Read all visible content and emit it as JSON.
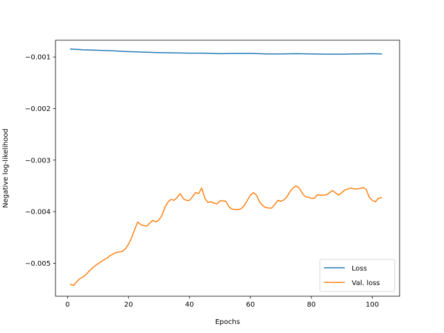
{
  "chart_data": {
    "type": "line",
    "title": "",
    "xlabel": "Epochs",
    "ylabel": "Negative log-likelihood",
    "xlim": [
      -3.95,
      108.95
    ],
    "ylim": [
      -0.00564,
      -0.000675
    ],
    "xticks": [
      0,
      20,
      40,
      60,
      80,
      100
    ],
    "xtick_labels": [
      "0",
      "20",
      "40",
      "60",
      "80",
      "100"
    ],
    "yticks": [
      -0.005,
      -0.004,
      -0.003,
      -0.002,
      -0.001
    ],
    "ytick_labels": [
      "−0.005",
      "−0.004",
      "−0.003",
      "−0.002",
      "−0.001"
    ],
    "grid": false,
    "legend_position": "lower right",
    "series": [
      {
        "name": "Loss",
        "color": "#1f77b4",
        "x": [
          1,
          5,
          10,
          15,
          20,
          25,
          30,
          35,
          40,
          45,
          50,
          55,
          60,
          65,
          70,
          75,
          80,
          85,
          90,
          95,
          100,
          103
        ],
        "y": [
          -0.000845,
          -0.00086,
          -0.00087,
          -0.00088,
          -0.000895,
          -0.000905,
          -0.000915,
          -0.00092,
          -0.000925,
          -0.000925,
          -0.000935,
          -0.00093,
          -0.00093,
          -0.00094,
          -0.00094,
          -0.000935,
          -0.00094,
          -0.000945,
          -0.000945,
          -0.00094,
          -0.000935,
          -0.00094
        ]
      },
      {
        "name": "Val. loss",
        "color": "#ff7f0e",
        "x": [
          1,
          2,
          3,
          4,
          5,
          6,
          7,
          8,
          9,
          10,
          11,
          12,
          13,
          14,
          15,
          16,
          17,
          18,
          19,
          20,
          21,
          22,
          23,
          24,
          25,
          26,
          27,
          28,
          29,
          30,
          31,
          32,
          33,
          34,
          35,
          36,
          37,
          38,
          39,
          40,
          41,
          42,
          43,
          44,
          45,
          46,
          47,
          48,
          49,
          50,
          51,
          52,
          53,
          54,
          55,
          56,
          57,
          58,
          59,
          60,
          61,
          62,
          63,
          64,
          65,
          66,
          67,
          68,
          69,
          70,
          71,
          72,
          73,
          74,
          75,
          76,
          77,
          78,
          79,
          80,
          81,
          82,
          83,
          84,
          85,
          86,
          87,
          88,
          89,
          90,
          91,
          92,
          93,
          94,
          95,
          96,
          97,
          98,
          99,
          100,
          101,
          102,
          103
        ],
        "y": [
          -0.00541,
          -0.00543,
          -0.00536,
          -0.0053,
          -0.00527,
          -0.00522,
          -0.00516,
          -0.0051,
          -0.00505,
          -0.00501,
          -0.00497,
          -0.00493,
          -0.0049,
          -0.00485,
          -0.00482,
          -0.00479,
          -0.00478,
          -0.00477,
          -0.00472,
          -0.00463,
          -0.00451,
          -0.00435,
          -0.0042,
          -0.00425,
          -0.00427,
          -0.00428,
          -0.00422,
          -0.00417,
          -0.0042,
          -0.00416,
          -0.00407,
          -0.00391,
          -0.00381,
          -0.00376,
          -0.00378,
          -0.00372,
          -0.00365,
          -0.00375,
          -0.00378,
          -0.00378,
          -0.00371,
          -0.00363,
          -0.00365,
          -0.00354,
          -0.00373,
          -0.00382,
          -0.00381,
          -0.00383,
          -0.00385,
          -0.00379,
          -0.00379,
          -0.0038,
          -0.00391,
          -0.00395,
          -0.00396,
          -0.00396,
          -0.00394,
          -0.00388,
          -0.00378,
          -0.00368,
          -0.00363,
          -0.00368,
          -0.00381,
          -0.00388,
          -0.00392,
          -0.00393,
          -0.00393,
          -0.00386,
          -0.00378,
          -0.0038,
          -0.00377,
          -0.00371,
          -0.00361,
          -0.00354,
          -0.0035,
          -0.00354,
          -0.00364,
          -0.00371,
          -0.00372,
          -0.00374,
          -0.00374,
          -0.00367,
          -0.00368,
          -0.00368,
          -0.00367,
          -0.00363,
          -0.00359,
          -0.00364,
          -0.00368,
          -0.00363,
          -0.00358,
          -0.00356,
          -0.00354,
          -0.00356,
          -0.00356,
          -0.00355,
          -0.00353,
          -0.00357,
          -0.00372,
          -0.00378,
          -0.00381,
          -0.00374,
          -0.00373
        ]
      }
    ]
  }
}
